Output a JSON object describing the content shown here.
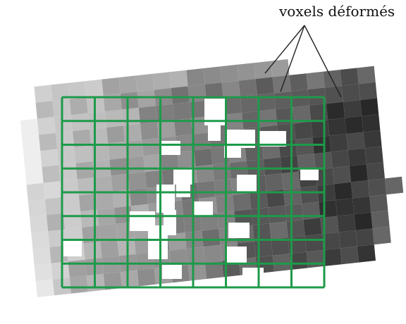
{
  "annotation": {
    "label": "voxels déformés"
  },
  "colors": {
    "grid_line": "#1e9a4a",
    "pointer_line": "#222222",
    "background": "#ffffff"
  }
}
